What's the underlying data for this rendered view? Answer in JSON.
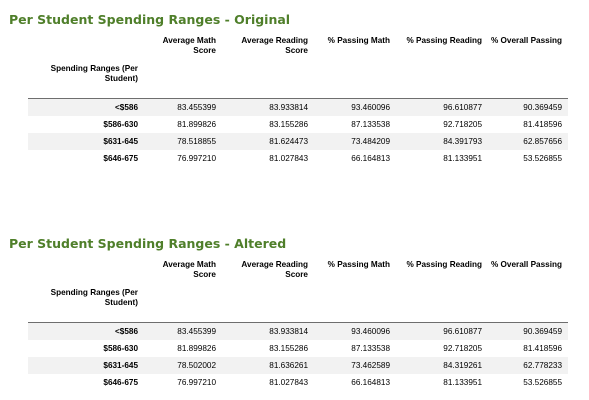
{
  "tables": [
    {
      "title": "Per Student Spending Ranges - Original",
      "columns": [
        "Average Math Score",
        "Average Reading Score",
        "% Passing Math",
        "% Passing Reading",
        "% Overall Passing"
      ],
      "index_name": "Spending Ranges (Per Student)",
      "rows": [
        {
          "label": "<$586",
          "values": [
            "83.455399",
            "83.933814",
            "93.460096",
            "96.610877",
            "90.369459"
          ]
        },
        {
          "label": "$586-630",
          "values": [
            "81.899826",
            "83.155286",
            "87.133538",
            "92.718205",
            "81.418596"
          ]
        },
        {
          "label": "$631-645",
          "values": [
            "78.518855",
            "81.624473",
            "73.484209",
            "84.391793",
            "62.857656"
          ]
        },
        {
          "label": "$646-675",
          "values": [
            "76.997210",
            "81.027843",
            "66.164813",
            "81.133951",
            "53.526855"
          ]
        }
      ]
    },
    {
      "title": "Per Student Spending Ranges - Altered",
      "columns": [
        "Average Math Score",
        "Average Reading Score",
        "% Passing Math",
        "% Passing Reading",
        "% Overall Passing"
      ],
      "index_name": "Spending Ranges (Per Student)",
      "rows": [
        {
          "label": "<$586",
          "values": [
            "83.455399",
            "83.933814",
            "93.460096",
            "96.610877",
            "90.369459"
          ]
        },
        {
          "label": "$586-630",
          "values": [
            "81.899826",
            "83.155286",
            "87.133538",
            "92.718205",
            "81.418596"
          ]
        },
        {
          "label": "$631-645",
          "values": [
            "78.502002",
            "81.636261",
            "73.462589",
            "84.319261",
            "62.778233"
          ]
        },
        {
          "label": "$646-675",
          "values": [
            "76.997210",
            "81.027843",
            "66.164813",
            "81.133951",
            "53.526855"
          ]
        }
      ]
    }
  ]
}
